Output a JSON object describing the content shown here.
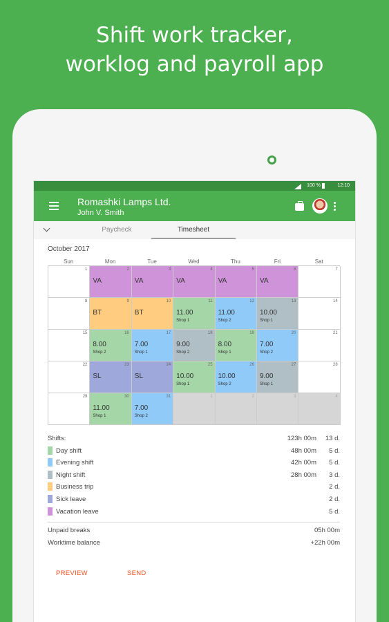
{
  "headline": {
    "line1": "Shift work tracker,",
    "line2": "worklog and payroll app"
  },
  "status_bar": {
    "battery": "100 %",
    "time": "12:10"
  },
  "app_bar": {
    "company": "Romashki Lamps Ltd.",
    "person": "John V. Smith"
  },
  "tabs": [
    {
      "label": "Paycheck"
    },
    {
      "label": "Timesheet"
    }
  ],
  "calendar": {
    "month": "October 2017",
    "weekdays": [
      "Sun",
      "Mon",
      "Tue",
      "Wed",
      "Thu",
      "Fri",
      "Sat"
    ],
    "weeks": [
      [
        {
          "day": "1",
          "type": "",
          "value": "",
          "shop": ""
        },
        {
          "day": "2",
          "type": "va",
          "value": "VA",
          "shop": ""
        },
        {
          "day": "3",
          "type": "va",
          "value": "VA",
          "shop": ""
        },
        {
          "day": "4",
          "type": "va",
          "value": "VA",
          "shop": ""
        },
        {
          "day": "5",
          "type": "va",
          "value": "VA",
          "shop": ""
        },
        {
          "day": "6",
          "type": "va",
          "value": "VA",
          "shop": ""
        },
        {
          "day": "7",
          "type": "",
          "value": "",
          "shop": ""
        }
      ],
      [
        {
          "day": "8",
          "type": "",
          "value": "",
          "shop": ""
        },
        {
          "day": "9",
          "type": "bt",
          "value": "BT",
          "shop": ""
        },
        {
          "day": "10",
          "type": "bt",
          "value": "BT",
          "shop": ""
        },
        {
          "day": "11",
          "type": "day",
          "value": "11.00",
          "shop": "Shop 1"
        },
        {
          "day": "12",
          "type": "eve",
          "value": "11.00",
          "shop": "Shop 2"
        },
        {
          "day": "13",
          "type": "night",
          "value": "10.00",
          "shop": "Shop 1"
        },
        {
          "day": "14",
          "type": "",
          "value": "",
          "shop": ""
        }
      ],
      [
        {
          "day": "15",
          "type": "",
          "value": "",
          "shop": ""
        },
        {
          "day": "16",
          "type": "day",
          "value": "8.00",
          "shop": "Shop 2"
        },
        {
          "day": "17",
          "type": "eve",
          "value": "7.00",
          "shop": "Shop 1"
        },
        {
          "day": "18",
          "type": "night",
          "value": "9.00",
          "shop": "Shop 2"
        },
        {
          "day": "19",
          "type": "day",
          "value": "8.00",
          "shop": "Shop 1"
        },
        {
          "day": "20",
          "type": "eve",
          "value": "7.00",
          "shop": "Shop 2"
        },
        {
          "day": "21",
          "type": "",
          "value": "",
          "shop": ""
        }
      ],
      [
        {
          "day": "22",
          "type": "",
          "value": "",
          "shop": ""
        },
        {
          "day": "23",
          "type": "sl",
          "value": "SL",
          "shop": ""
        },
        {
          "day": "24",
          "type": "sl",
          "value": "SL",
          "shop": ""
        },
        {
          "day": "25",
          "type": "day",
          "value": "10.00",
          "shop": "Shop 1"
        },
        {
          "day": "26",
          "type": "eve",
          "value": "10.00",
          "shop": "Shop 2"
        },
        {
          "day": "27",
          "type": "night",
          "value": "9.00",
          "shop": "Shop 1"
        },
        {
          "day": "28",
          "type": "",
          "value": "",
          "shop": ""
        }
      ],
      [
        {
          "day": "29",
          "type": "",
          "value": "",
          "shop": ""
        },
        {
          "day": "30",
          "type": "day",
          "value": "11.00",
          "shop": "Shop 1"
        },
        {
          "day": "31",
          "type": "eve",
          "value": "7.00",
          "shop": "Shop 2"
        },
        {
          "day": "1",
          "type": "out",
          "value": "",
          "shop": ""
        },
        {
          "day": "2",
          "type": "out",
          "value": "",
          "shop": ""
        },
        {
          "day": "3",
          "type": "out",
          "value": "",
          "shop": ""
        },
        {
          "day": "4",
          "type": "out",
          "value": "",
          "shop": ""
        }
      ]
    ]
  },
  "summary": {
    "shifts_label": "Shifts:",
    "shifts_hours": "123h 00m",
    "shifts_days": "13 d.",
    "items": [
      {
        "label": "Day shift",
        "hours": "48h 00m",
        "days": "5 d.",
        "color": "#a5d6a7"
      },
      {
        "label": "Evening shift",
        "hours": "42h 00m",
        "days": "5 d.",
        "color": "#90caf9"
      },
      {
        "label": "Night shift",
        "hours": "28h 00m",
        "days": "3 d.",
        "color": "#b0bec5"
      },
      {
        "label": "Business trip",
        "hours": "",
        "days": "2 d.",
        "color": "#ffcc80"
      },
      {
        "label": "Sick leave",
        "hours": "",
        "days": "2 d.",
        "color": "#9fa8da"
      },
      {
        "label": "Vacation leave",
        "hours": "",
        "days": "5 d.",
        "color": "#ce93d8"
      }
    ],
    "unpaid_breaks_label": "Unpaid breaks",
    "unpaid_breaks_value": "05h 00m",
    "worktime_balance_label": "Worktime balance",
    "worktime_balance_value": "+22h 00m"
  },
  "actions": {
    "preview": "PREVIEW",
    "send": "SEND"
  }
}
